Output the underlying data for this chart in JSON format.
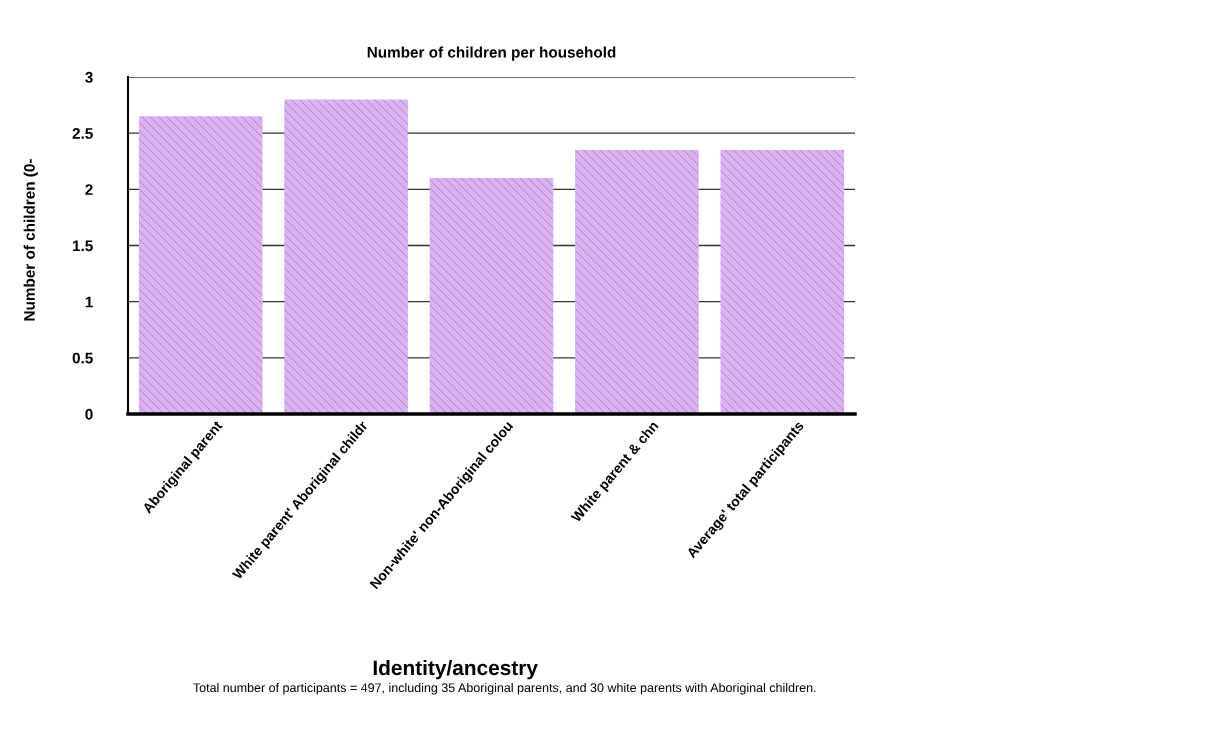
{
  "chart_data": {
    "type": "bar",
    "title": "Number of children per household",
    "xlabel": "Identity/ancestry",
    "ylabel": "Number of children (0-",
    "categories": [
      "Aboriginal parent",
      "White parent' Aboriginal childr",
      "Non-white' non-Aboriginal colou",
      "White parent & chn",
      "Average' total participants"
    ],
    "values": [
      2.65,
      2.8,
      2.1,
      2.35,
      2.35
    ],
    "color": "#deb0f5",
    "ylim": [
      0,
      3
    ],
    "yticks": [
      0,
      0.5,
      1,
      1.5,
      2,
      2.5,
      3
    ],
    "grid": "y",
    "annotations": [
      "Total number of participants = 497, including 35 Aboriginal parents, and 30 white parents with Aboriginal children."
    ]
  }
}
